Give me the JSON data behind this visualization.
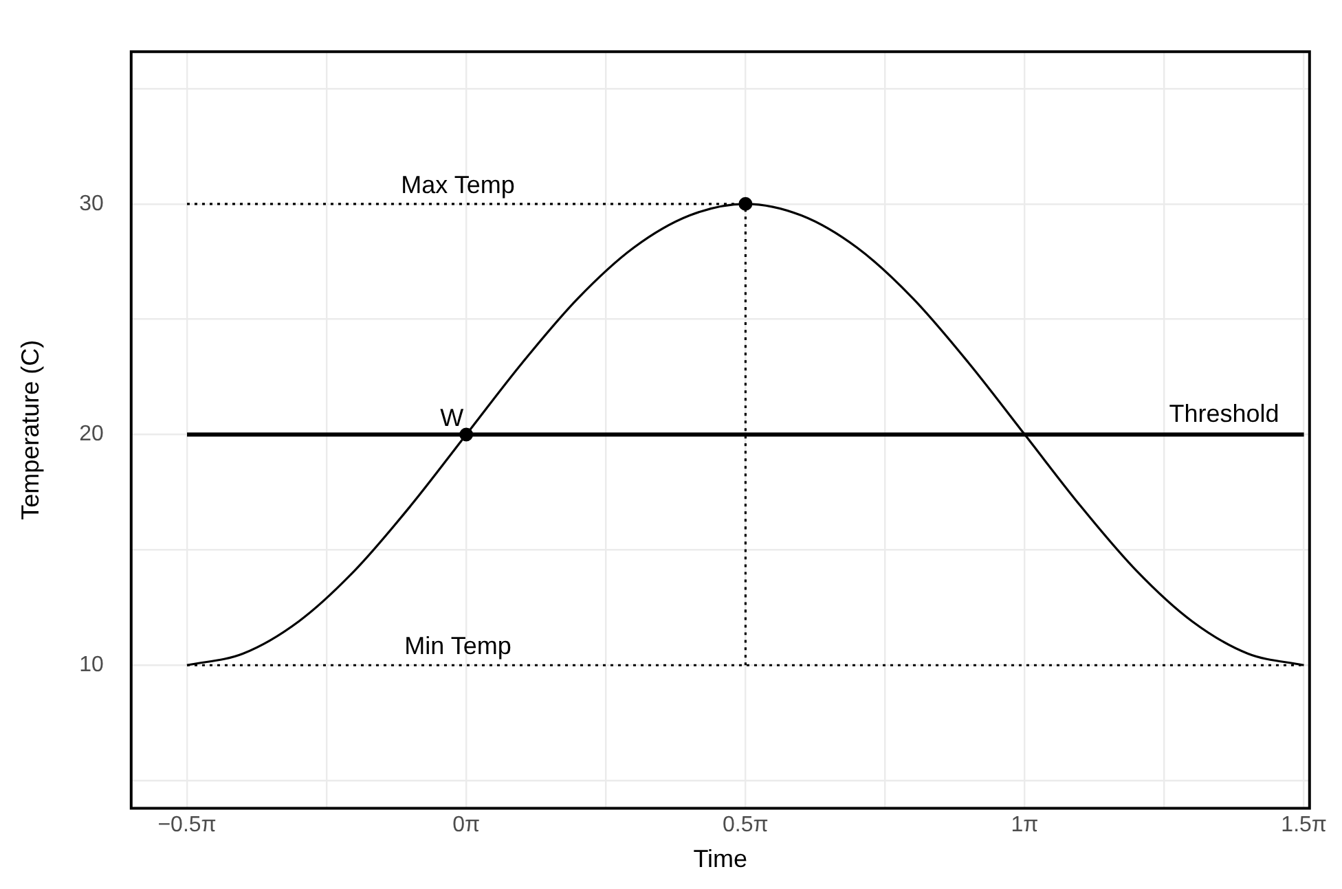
{
  "chart_data": {
    "type": "line",
    "xlabel": "Time",
    "ylabel": "Temperature (C)",
    "xlim": [
      -1.885,
      4.744
    ],
    "ylim": [
      3.8,
      36.6
    ],
    "xticks": [
      {
        "value": -1.5708,
        "label": "−0.5π"
      },
      {
        "value": -0.7854,
        "label": null
      },
      {
        "value": 0,
        "label": "0π"
      },
      {
        "value": 0.7854,
        "label": null
      },
      {
        "value": 1.5708,
        "label": "0.5π"
      },
      {
        "value": 2.3562,
        "label": null
      },
      {
        "value": 3.1416,
        "label": "1π"
      },
      {
        "value": 3.927,
        "label": null
      },
      {
        "value": 4.7124,
        "label": "1.5π"
      }
    ],
    "yticks": [
      {
        "value": 5,
        "label": null
      },
      10,
      {
        "value": 15,
        "label": null
      },
      20,
      {
        "value": 25,
        "label": null
      },
      30,
      {
        "value": 35,
        "label": null
      }
    ],
    "grid": true,
    "legend": false,
    "series": [
      {
        "color": "#000000",
        "line_style": "solid",
        "x": [
          -1.571,
          -1.257,
          -0.942,
          -0.628,
          -0.314,
          0,
          0.314,
          0.628,
          0.942,
          1.257,
          1.571,
          1.885,
          2.199,
          2.513,
          2.827,
          3.142,
          3.456,
          3.77,
          4.084,
          4.398,
          4.712
        ],
        "values": [
          10,
          10.5,
          11.9,
          14.1,
          16.9,
          20,
          23.1,
          25.9,
          28.1,
          29.5,
          30,
          29.5,
          28.1,
          25.9,
          23.1,
          20,
          16.9,
          14.1,
          11.9,
          10.5,
          10
        ]
      },
      {
        "name": "Max Temp",
        "color": "#000000",
        "line_style": "dotted",
        "x": [
          -1.571,
          1.571
        ],
        "values": [
          30,
          30
        ]
      },
      {
        "name": "Min Temp",
        "color": "#000000",
        "line_style": "dotted",
        "x": [
          -1.571,
          4.712
        ],
        "values": [
          10,
          10
        ]
      },
      {
        "color": "#000000",
        "line_style": "dotted",
        "x": [
          1.571,
          1.571
        ],
        "values": [
          10,
          30
        ]
      },
      {
        "type": "scatter",
        "color": "#000000",
        "marker": "circle",
        "x": [
          0,
          1.571
        ],
        "values": [
          20,
          30
        ]
      }
    ],
    "ref_lines": [
      {
        "axis": "y",
        "value": 20,
        "label": "Threshold",
        "color": "#000000",
        "line_style": "solid"
      }
    ],
    "annotations": [
      {
        "text": "W",
        "x": 0,
        "y": 20
      }
    ]
  }
}
